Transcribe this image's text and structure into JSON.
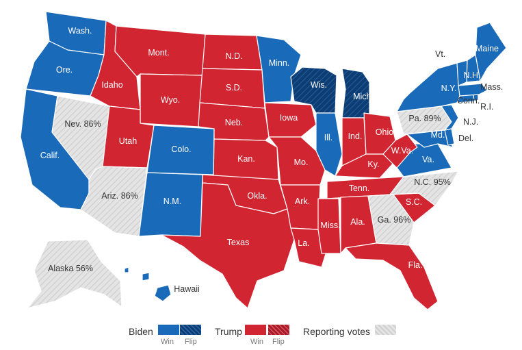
{
  "colors": {
    "biden": "#1a6aba",
    "biden_flip": "#0e3d73",
    "trump": "#d22532",
    "trump_flip": "#a41c28",
    "reporting": "#dedede",
    "border": "#ffffff"
  },
  "states": [
    {
      "name": "Wash.",
      "status": "biden"
    },
    {
      "name": "Ore.",
      "status": "biden"
    },
    {
      "name": "Calif.",
      "status": "biden"
    },
    {
      "name": "Nev. 86%",
      "status": "reporting"
    },
    {
      "name": "Idaho",
      "status": "trump"
    },
    {
      "name": "Mont.",
      "status": "trump"
    },
    {
      "name": "Wyo.",
      "status": "trump"
    },
    {
      "name": "Utah",
      "status": "trump"
    },
    {
      "name": "Ariz. 86%",
      "status": "reporting"
    },
    {
      "name": "Colo.",
      "status": "biden"
    },
    {
      "name": "N.M.",
      "status": "biden"
    },
    {
      "name": "N.D.",
      "status": "trump"
    },
    {
      "name": "S.D.",
      "status": "trump"
    },
    {
      "name": "Neb.",
      "status": "trump"
    },
    {
      "name": "Kan.",
      "status": "trump"
    },
    {
      "name": "Okla.",
      "status": "trump"
    },
    {
      "name": "Texas",
      "status": "trump"
    },
    {
      "name": "Minn.",
      "status": "biden"
    },
    {
      "name": "Iowa",
      "status": "trump"
    },
    {
      "name": "Mo.",
      "status": "trump"
    },
    {
      "name": "Ark.",
      "status": "trump"
    },
    {
      "name": "La.",
      "status": "trump"
    },
    {
      "name": "Wis.",
      "status": "biden_flip"
    },
    {
      "name": "Ill.",
      "status": "biden"
    },
    {
      "name": "Mich.",
      "status": "biden_flip"
    },
    {
      "name": "Ind.",
      "status": "trump"
    },
    {
      "name": "Ohio",
      "status": "trump"
    },
    {
      "name": "Ky.",
      "status": "trump"
    },
    {
      "name": "Tenn.",
      "status": "trump"
    },
    {
      "name": "Miss.",
      "status": "trump"
    },
    {
      "name": "Ala.",
      "status": "trump"
    },
    {
      "name": "Ga. 96%",
      "status": "reporting"
    },
    {
      "name": "Fla.",
      "status": "trump"
    },
    {
      "name": "S.C.",
      "status": "trump"
    },
    {
      "name": "N.C. 95%",
      "status": "reporting"
    },
    {
      "name": "Va.",
      "status": "biden"
    },
    {
      "name": "W.Va.",
      "status": "trump"
    },
    {
      "name": "Pa. 89%",
      "status": "reporting"
    },
    {
      "name": "Md.",
      "status": "biden"
    },
    {
      "name": "Del.",
      "status": "biden"
    },
    {
      "name": "N.J.",
      "status": "biden"
    },
    {
      "name": "N.Y.",
      "status": "biden"
    },
    {
      "name": "Conn.",
      "status": "biden"
    },
    {
      "name": "R.I.",
      "status": "biden"
    },
    {
      "name": "Mass.",
      "status": "biden"
    },
    {
      "name": "Vt.",
      "status": "biden"
    },
    {
      "name": "N.H.",
      "status": "biden"
    },
    {
      "name": "Maine",
      "status": "biden"
    },
    {
      "name": "Alaska 56%",
      "status": "reporting"
    },
    {
      "name": "Hawaii",
      "status": "biden"
    }
  ],
  "legend": {
    "biden_label": "Biden",
    "trump_label": "Trump",
    "reporting_label": "Reporting votes",
    "win_label": "Win",
    "flip_label": "Flip"
  }
}
